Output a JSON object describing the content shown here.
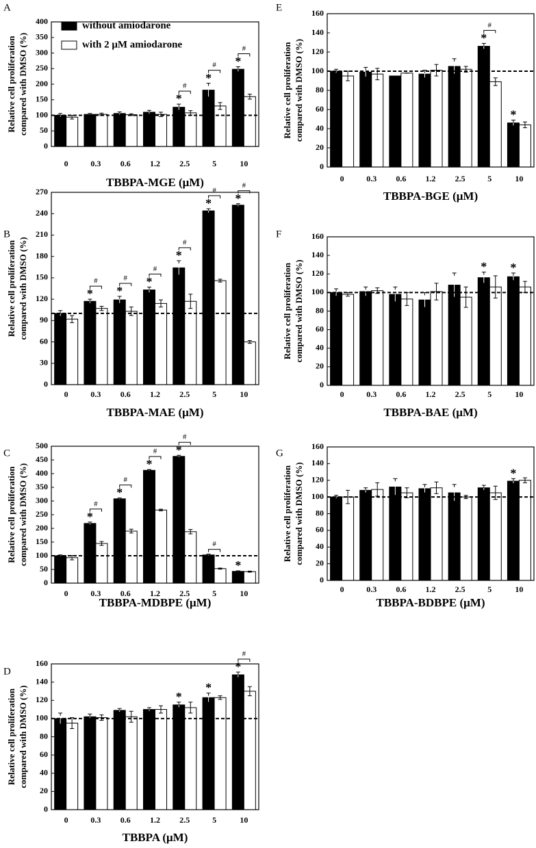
{
  "chart_data": [
    {
      "type": "bar",
      "label": "A",
      "xlabel": "TBBPA-MGE (μM)",
      "ylabel": [
        "Relative cell proliferation",
        "compared with DMSO (%)"
      ],
      "categories": [
        "0",
        "0.3",
        "0.6",
        "1.2",
        "2.5",
        "5",
        "10"
      ],
      "series": [
        {
          "name": "without amiodarone",
          "color": "#000000",
          "values": [
            100,
            103,
            106,
            110,
            126,
            181,
            248
          ],
          "errors": [
            6,
            3,
            5,
            6,
            10,
            22,
            8
          ]
        },
        {
          "name": "with 2 μM amiodarone",
          "color": "#ffffff",
          "values": [
            94,
            103,
            102,
            103,
            108,
            130,
            160
          ],
          "errors": [
            6,
            4,
            3,
            7,
            7,
            11,
            8
          ]
        }
      ],
      "ylim": [
        0,
        400
      ],
      "yticks": [
        0,
        50,
        100,
        150,
        200,
        250,
        300,
        350,
        400
      ],
      "refline": 100,
      "legend": true,
      "stars": [
        null,
        null,
        null,
        null,
        "*",
        "*",
        "*"
      ],
      "hashes": [
        null,
        null,
        null,
        null,
        "#",
        "#",
        "#"
      ]
    },
    {
      "type": "bar",
      "label": "B",
      "xlabel": "TBBPA-MAE (μM)",
      "ylabel": [
        "Relative cell proliferation",
        "compared with DMSO (%)"
      ],
      "categories": [
        "0",
        "0.3",
        "0.6",
        "1.2",
        "2.5",
        "5",
        "10"
      ],
      "series": [
        {
          "color": "#000000",
          "values": [
            100,
            117,
            119,
            133,
            164,
            244,
            252
          ],
          "errors": [
            4,
            3,
            5,
            4,
            10,
            3,
            2
          ]
        },
        {
          "color": "#ffffff",
          "values": [
            92,
            107,
            103,
            114,
            117,
            146,
            60
          ],
          "errors": [
            5,
            3,
            6,
            5,
            10,
            2,
            2
          ]
        }
      ],
      "ylim": [
        0,
        270
      ],
      "yticks": [
        0,
        30,
        60,
        90,
        120,
        150,
        180,
        210,
        240,
        270
      ],
      "refline": 100,
      "legend": false,
      "stars": [
        null,
        "*",
        "*",
        "*",
        "*",
        "*",
        "*"
      ],
      "hashes": [
        null,
        "#",
        "#",
        "#",
        "#",
        "#",
        "#"
      ]
    },
    {
      "type": "bar",
      "label": "C",
      "xlabel": "TBBPA-MDBPE (μM)",
      "ylabel": [
        "Relative cell proliferation",
        "compared with DMSO (%)"
      ],
      "categories": [
        "0",
        "0.3",
        "0.6",
        "1.2",
        "2.5",
        "5",
        "10"
      ],
      "series": [
        {
          "color": "#000000",
          "values": [
            100,
            218,
            308,
            412,
            463,
            103,
            43
          ],
          "errors": [
            3,
            5,
            3,
            3,
            4,
            3,
            2
          ]
        },
        {
          "color": "#ffffff",
          "values": [
            93,
            145,
            190,
            267,
            188,
            53,
            42
          ],
          "errors": [
            8,
            7,
            7,
            3,
            8,
            2,
            2
          ]
        }
      ],
      "ylim": [
        0,
        500
      ],
      "yticks": [
        0,
        50,
        100,
        150,
        200,
        250,
        300,
        350,
        400,
        450,
        500
      ],
      "refline": 100,
      "legend": false,
      "stars": [
        null,
        "*",
        "*",
        "*",
        "*",
        null,
        "*"
      ],
      "hashes": [
        null,
        "#",
        "#",
        "#",
        "#",
        "#",
        null
      ]
    },
    {
      "type": "bar",
      "label": "D",
      "xlabel": "TBBPA (μM)",
      "ylabel": [
        "Relative cell proliferation",
        "compared with DMSO (%)"
      ],
      "categories": [
        "0",
        "0.3",
        "0.6",
        "1.2",
        "2.5",
        "5",
        "10"
      ],
      "series": [
        {
          "color": "#000000",
          "values": [
            100,
            102,
            109,
            110,
            115,
            123,
            148
          ],
          "errors": [
            6,
            3,
            2,
            2,
            3,
            5,
            3
          ]
        },
        {
          "color": "#ffffff",
          "values": [
            95,
            101,
            102,
            110,
            112,
            123,
            130
          ],
          "errors": [
            6,
            3,
            6,
            4,
            6,
            2,
            5
          ]
        }
      ],
      "ylim": [
        0,
        160
      ],
      "yticks": [
        0,
        20,
        40,
        60,
        80,
        100,
        120,
        140,
        160
      ],
      "refline": 100,
      "legend": false,
      "stars": [
        null,
        null,
        null,
        null,
        "*",
        "*",
        "*"
      ],
      "hashes": [
        null,
        null,
        null,
        null,
        null,
        null,
        "#"
      ]
    },
    {
      "type": "bar",
      "label": "E",
      "xlabel": "TBBPA-BGE (μM)",
      "ylabel": [
        "Relative cell proliferation",
        "compared with DMSO (%)"
      ],
      "categories": [
        "0",
        "0.3",
        "0.6",
        "1.2",
        "2.5",
        "5",
        "10"
      ],
      "series": [
        {
          "color": "#000000",
          "values": [
            100,
            99,
            95,
            97,
            105,
            126,
            46
          ],
          "errors": [
            2,
            5,
            0,
            4,
            8,
            3,
            3
          ]
        },
        {
          "color": "#ffffff",
          "values": [
            95,
            97,
            98,
            101,
            102,
            89,
            44
          ],
          "errors": [
            5,
            6,
            0,
            6,
            3,
            4,
            3
          ]
        }
      ],
      "ylim": [
        0,
        160
      ],
      "yticks": [
        0,
        20,
        40,
        60,
        80,
        100,
        120,
        140,
        160
      ],
      "refline": 100,
      "legend": false,
      "stars": [
        null,
        null,
        null,
        null,
        null,
        "*",
        "*"
      ],
      "hashes": [
        null,
        null,
        null,
        null,
        null,
        "#",
        null
      ]
    },
    {
      "type": "bar",
      "label": "F",
      "xlabel": "TBBPA-BAE (μM)",
      "ylabel": [
        "Relative cell proliferation",
        "compared with DMSO (%)"
      ],
      "categories": [
        "0",
        "0.3",
        "0.6",
        "1.2",
        "2.5",
        "5",
        "10"
      ],
      "series": [
        {
          "color": "#000000",
          "values": [
            100,
            101,
            98,
            92,
            108,
            116,
            117
          ],
          "errors": [
            4,
            5,
            8,
            8,
            13,
            6,
            4
          ]
        },
        {
          "color": "#ffffff",
          "values": [
            98,
            102,
            93,
            101,
            95,
            106,
            106
          ],
          "errors": [
            2,
            3,
            7,
            9,
            11,
            12,
            6
          ]
        }
      ],
      "ylim": [
        0,
        160
      ],
      "yticks": [
        0,
        20,
        40,
        60,
        80,
        100,
        120,
        140,
        160
      ],
      "refline": 100,
      "legend": false,
      "stars": [
        null,
        null,
        null,
        null,
        null,
        "*",
        "*"
      ],
      "hashes": [
        null,
        null,
        null,
        null,
        null,
        null,
        null
      ]
    },
    {
      "type": "bar",
      "label": "G",
      "xlabel": "TBBPA-BDBPE (μM)",
      "ylabel": [
        "Relative cell proliferation",
        "compared with DMSO (%)"
      ],
      "categories": [
        "0",
        "0.3",
        "0.6",
        "1.2",
        "2.5",
        "5",
        "10"
      ],
      "series": [
        {
          "color": "#000000",
          "values": [
            100,
            108,
            112,
            110,
            105,
            111,
            119
          ],
          "errors": [
            2,
            3,
            10,
            5,
            10,
            3,
            3
          ]
        },
        {
          "color": "#ffffff",
          "values": [
            100,
            109,
            105,
            111,
            100,
            105,
            120
          ],
          "errors": [
            8,
            8,
            6,
            7,
            2,
            8,
            3
          ]
        }
      ],
      "ylim": [
        0,
        160
      ],
      "yticks": [
        0,
        20,
        40,
        60,
        80,
        100,
        120,
        140,
        160
      ],
      "refline": 100,
      "legend": false,
      "stars": [
        null,
        null,
        null,
        null,
        null,
        null,
        "*"
      ],
      "hashes": [
        null,
        null,
        null,
        null,
        null,
        null,
        null
      ]
    }
  ]
}
